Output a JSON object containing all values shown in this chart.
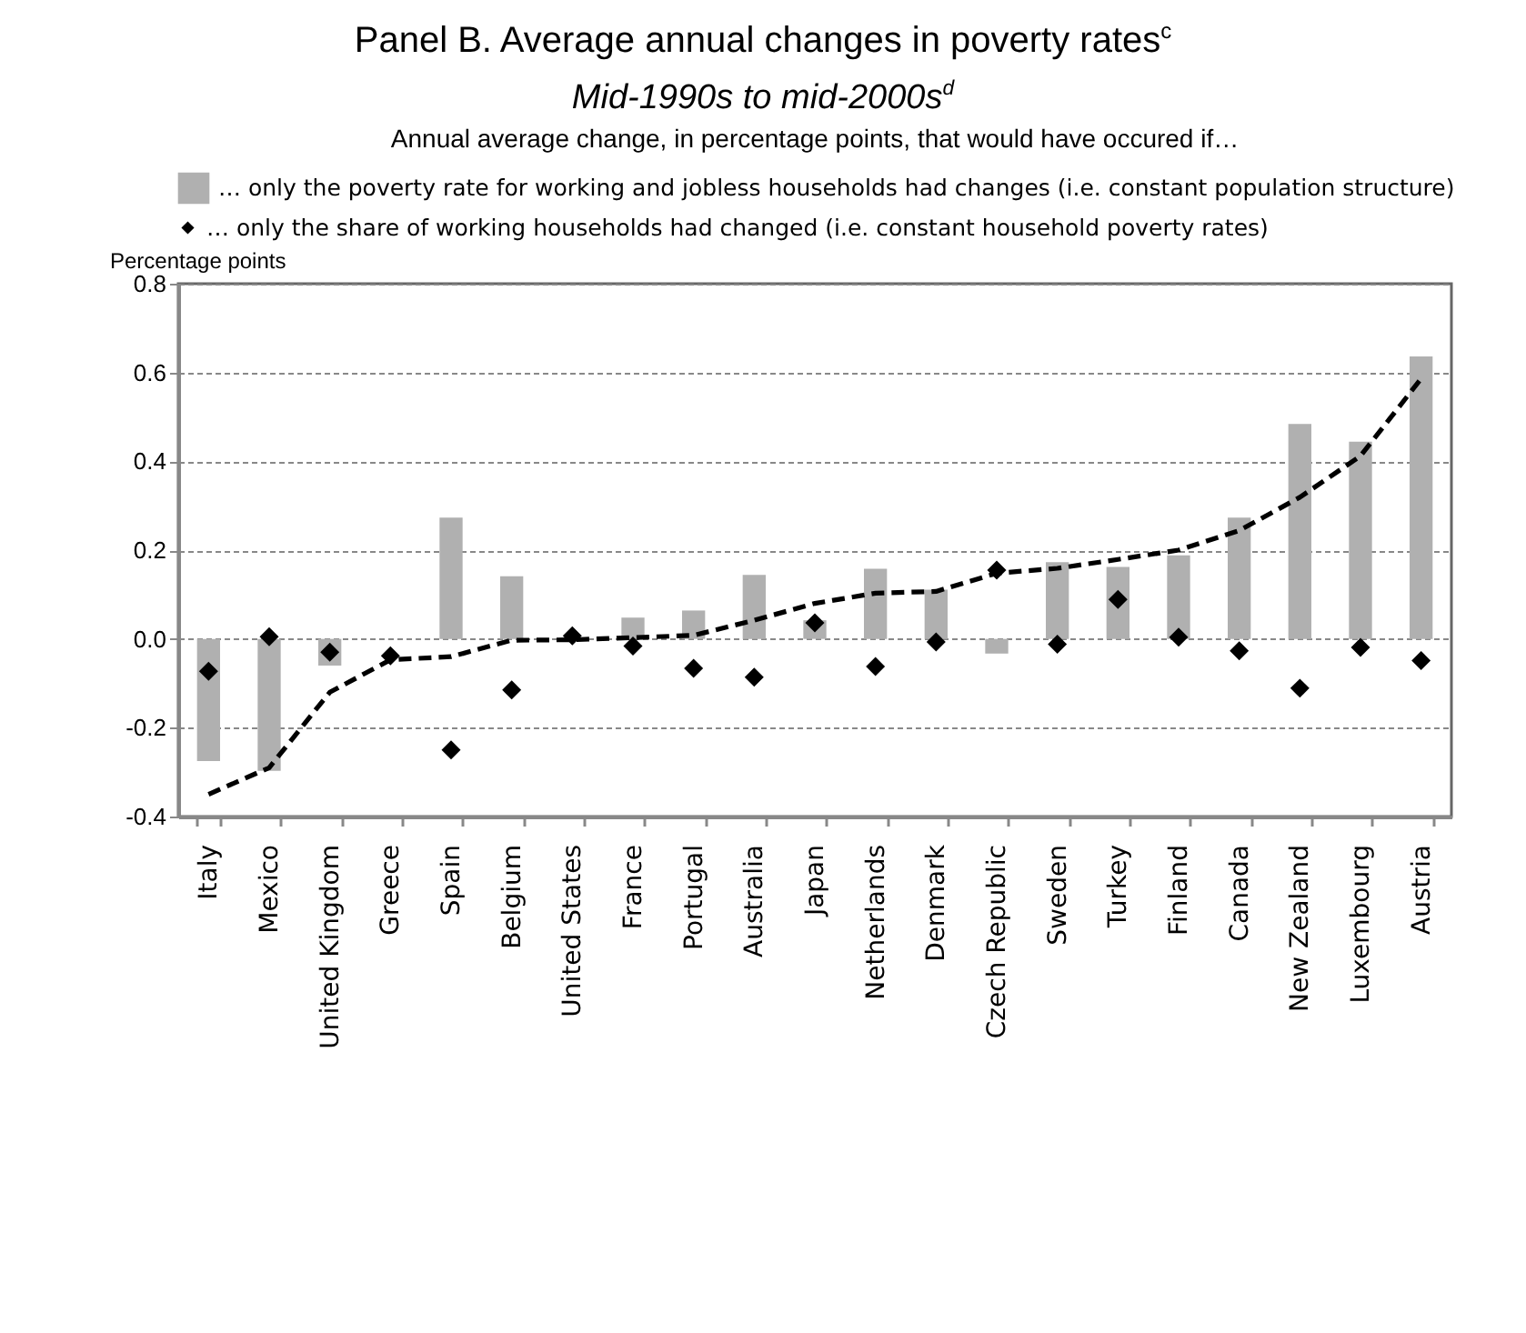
{
  "chart_data": {
    "type": "bar",
    "title": "Panel B. Average annual changes in poverty rates$^{c}$",
    "subtitle": "Mid-1990s to mid-2000s$^{d}$",
    "ylabel": "Percentage points",
    "legend_title": "Annual average change, in percentage points, that would have occured if…",
    "legend": "top",
    "categories": [
      "Italy",
      "Mexico",
      "United Kingdom",
      "Greece",
      "Spain",
      "Belgium",
      "United States",
      "France",
      "Portugal",
      "Australia",
      "Japan",
      "Netherlands",
      "Denmark",
      "Czech Republic",
      "Sweden",
      "Turkey",
      "Finland",
      "Canada",
      "New Zealand",
      "Luxembourg",
      "Austria"
    ],
    "series": [
      {
        "name": "… only the poverty rate for working and jobless households had changes (i.e. constant population structure)",
        "color": "#b0b0b0",
        "values": [
          -0.275,
          -0.297,
          -0.06,
          0.0,
          0.273,
          0.141,
          0.0,
          0.048,
          0.064,
          0.144,
          0.042,
          0.158,
          0.111,
          -0.033,
          0.173,
          0.162,
          0.188,
          0.273,
          0.484,
          0.444,
          0.636
        ]
      },
      {
        "name": "… only the share of working households had changed (i.e. constant household poverty rates)",
        "type": "scatter",
        "marker": "diamond",
        "color": "#000000",
        "values": [
          -0.073,
          0.005,
          -0.03,
          -0.038,
          -0.25,
          -0.115,
          0.007,
          -0.016,
          -0.066,
          -0.086,
          0.036,
          -0.062,
          -0.007,
          0.155,
          -0.012,
          0.089,
          0.004,
          -0.027,
          -0.111,
          -0.019,
          -0.049
        ]
      },
      {
        "type": "line",
        "line_style": "dashed",
        "color": "#000000",
        "values": [
          -0.35,
          -0.29,
          -0.12,
          -0.047,
          -0.04,
          -0.003,
          -0.002,
          0.003,
          0.008,
          0.042,
          0.08,
          0.103,
          0.107,
          0.148,
          0.159,
          0.179,
          0.2,
          0.244,
          0.319,
          0.412,
          0.586
        ]
      }
    ],
    "ylim": [
      -0.4,
      0.8
    ],
    "yticks": [
      -0.4,
      -0.2,
      {
        "value": 0,
        "label": "0.0"
      },
      0.2,
      0.4,
      0.6,
      0.8
    ],
    "grid": "y"
  }
}
